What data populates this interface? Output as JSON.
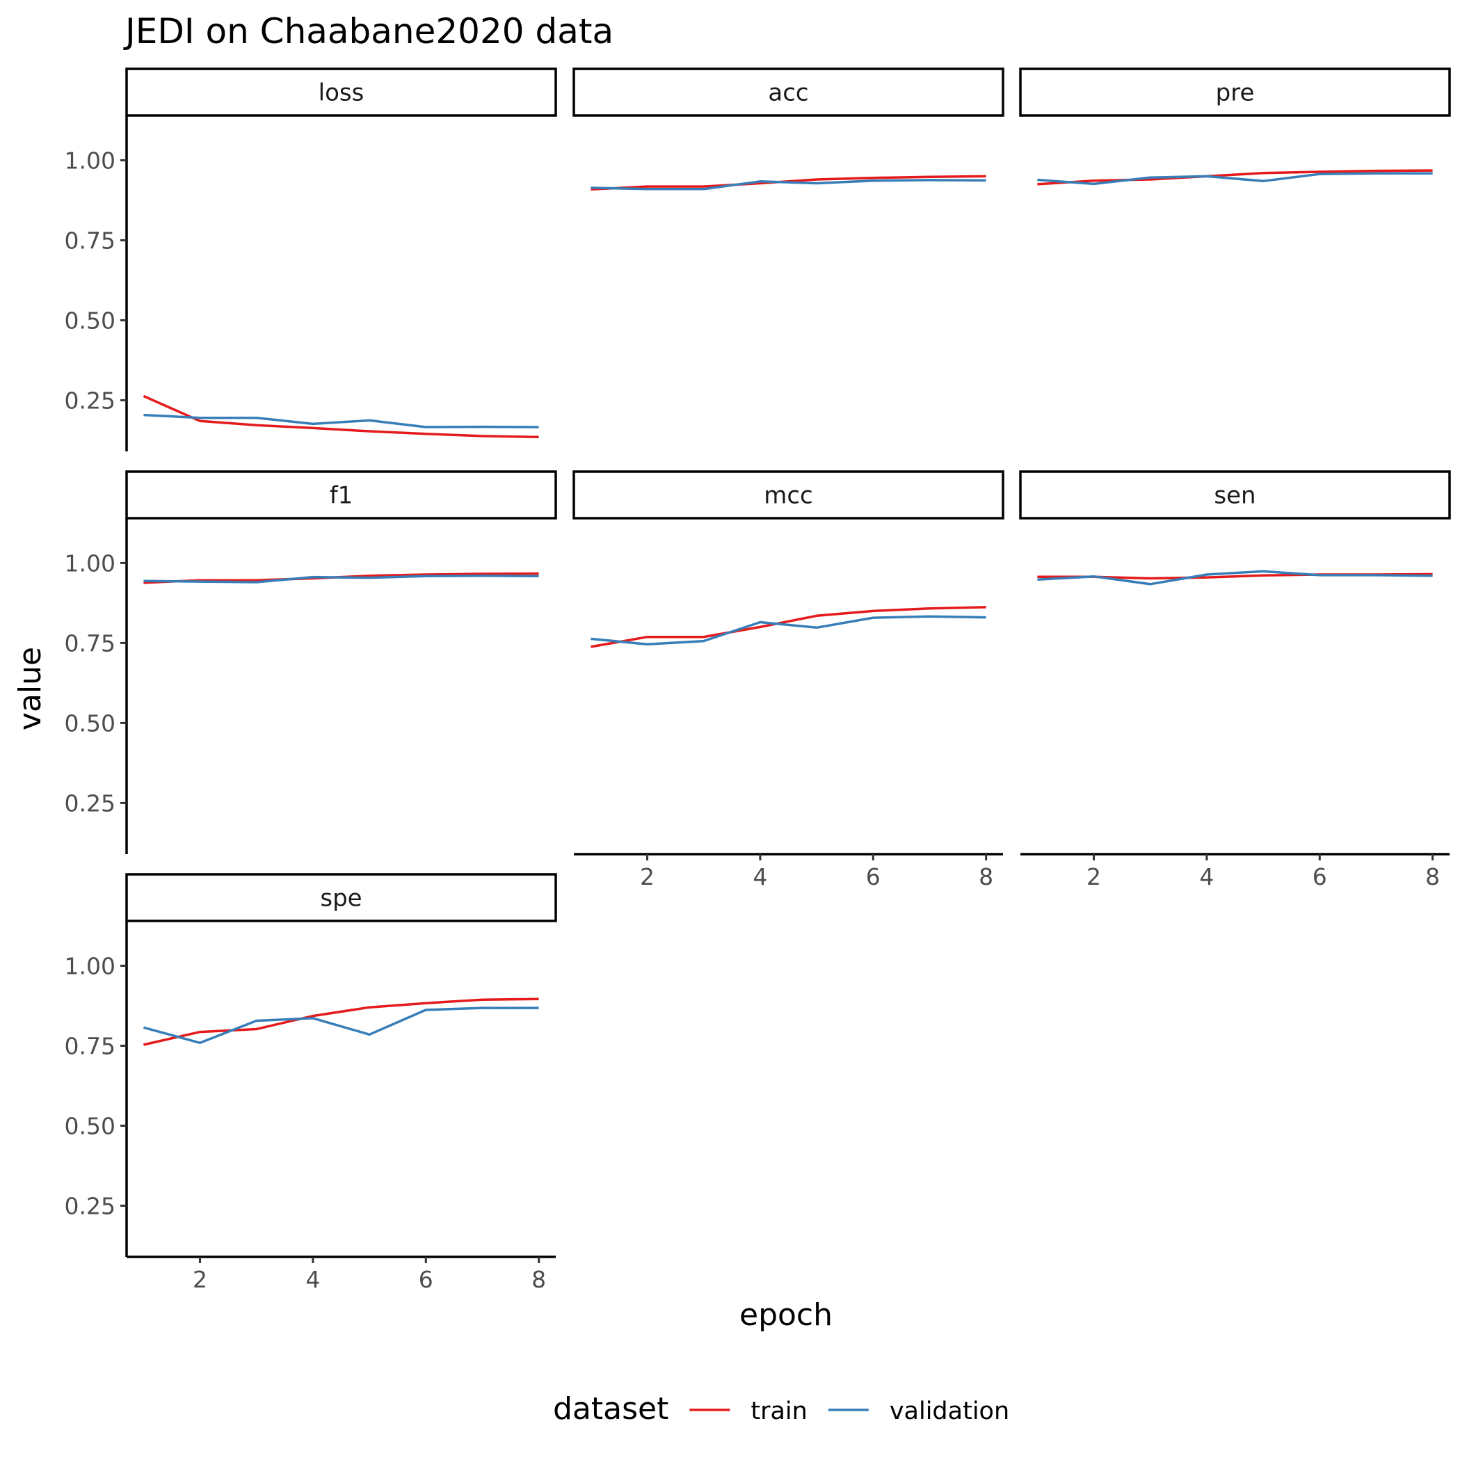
{
  "chart_data": {
    "type": "line",
    "title": "JEDI on Chaabane2020 data",
    "xlabel": "epoch",
    "ylabel": "value",
    "xlim": [
      0.7,
      8.3
    ],
    "ylim": [
      0.09,
      1.14
    ],
    "x_ticks": [
      2,
      4,
      6,
      8
    ],
    "y_ticks": [
      0.25,
      0.5,
      0.75,
      1.0
    ],
    "y_tick_labels": [
      "0.25",
      "0.50",
      "0.75",
      "1.00"
    ],
    "grid": false,
    "legend": {
      "title": "dataset",
      "position": "bottom",
      "entries": [
        {
          "name": "train",
          "color": "#E41A1C"
        },
        {
          "name": "validation",
          "color": "#377EB8"
        }
      ]
    },
    "x": [
      1,
      2,
      3,
      4,
      5,
      6,
      7,
      8
    ],
    "panels": [
      {
        "name": "loss",
        "series": [
          {
            "name": "train",
            "values": [
              0.263,
              0.185,
              0.172,
              0.163,
              0.153,
              0.145,
              0.138,
              0.135
            ]
          },
          {
            "name": "validation",
            "values": [
              0.204,
              0.195,
              0.195,
              0.176,
              0.187,
              0.166,
              0.167,
              0.166
            ]
          }
        ]
      },
      {
        "name": "acc",
        "series": [
          {
            "name": "train",
            "values": [
              0.909,
              0.918,
              0.918,
              0.928,
              0.94,
              0.945,
              0.948,
              0.95
            ]
          },
          {
            "name": "validation",
            "values": [
              0.914,
              0.91,
              0.91,
              0.934,
              0.928,
              0.936,
              0.938,
              0.937
            ]
          }
        ]
      },
      {
        "name": "pre",
        "series": [
          {
            "name": "train",
            "values": [
              0.925,
              0.936,
              0.94,
              0.95,
              0.96,
              0.964,
              0.967,
              0.968
            ]
          },
          {
            "name": "validation",
            "values": [
              0.939,
              0.926,
              0.946,
              0.95,
              0.935,
              0.957,
              0.959,
              0.959
            ]
          }
        ]
      },
      {
        "name": "f1",
        "series": [
          {
            "name": "train",
            "values": [
              0.938,
              0.946,
              0.946,
              0.952,
              0.96,
              0.964,
              0.966,
              0.967
            ]
          },
          {
            "name": "validation",
            "values": [
              0.944,
              0.942,
              0.94,
              0.956,
              0.954,
              0.959,
              0.96,
              0.959
            ]
          }
        ]
      },
      {
        "name": "mcc",
        "series": [
          {
            "name": "train",
            "values": [
              0.738,
              0.769,
              0.769,
              0.8,
              0.835,
              0.85,
              0.858,
              0.862
            ]
          },
          {
            "name": "validation",
            "values": [
              0.763,
              0.746,
              0.756,
              0.815,
              0.798,
              0.829,
              0.833,
              0.83
            ]
          }
        ]
      },
      {
        "name": "sen",
        "series": [
          {
            "name": "train",
            "values": [
              0.957,
              0.957,
              0.952,
              0.955,
              0.961,
              0.964,
              0.964,
              0.965
            ]
          },
          {
            "name": "validation",
            "values": [
              0.948,
              0.958,
              0.934,
              0.964,
              0.974,
              0.962,
              0.962,
              0.96
            ]
          }
        ]
      },
      {
        "name": "spe",
        "series": [
          {
            "name": "train",
            "values": [
              0.753,
              0.793,
              0.802,
              0.843,
              0.87,
              0.883,
              0.894,
              0.896
            ]
          },
          {
            "name": "validation",
            "values": [
              0.807,
              0.759,
              0.828,
              0.836,
              0.785,
              0.862,
              0.868,
              0.868
            ]
          }
        ]
      }
    ]
  }
}
